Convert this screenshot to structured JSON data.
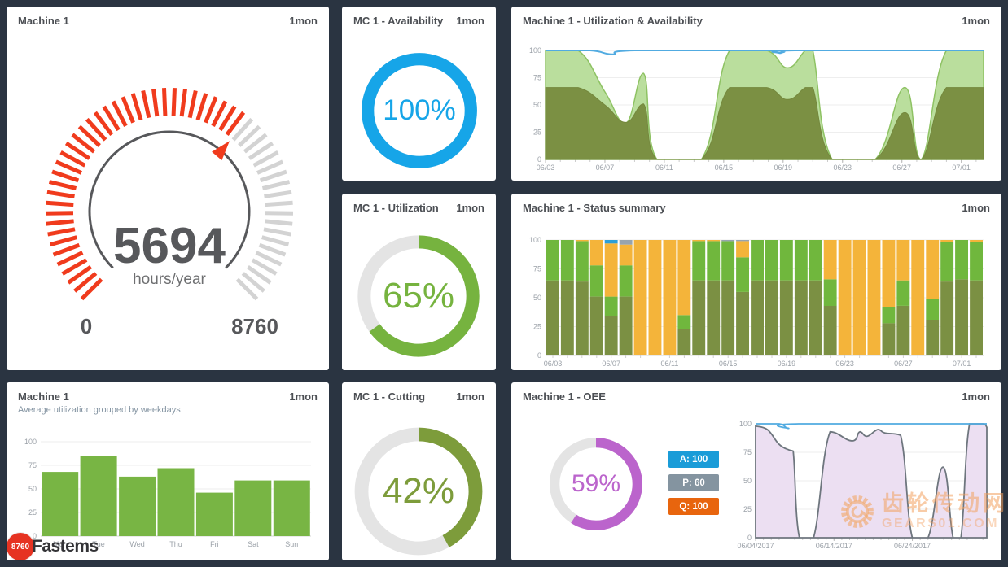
{
  "page": {
    "background": "#2a3441"
  },
  "logo": {
    "badge": "8760",
    "name": "Fastems",
    "badge_color": "#e63322"
  },
  "watermark": {
    "title": "齿轮传动网",
    "domain": "GEARS01.COM"
  },
  "panels": {
    "gauge": {
      "title": "Machine 1",
      "range_badge": "1mon",
      "chart_data": {
        "type": "gauge",
        "value": 5694,
        "min": 0,
        "max": 8760,
        "value_label": "5694",
        "unit": "hours/year",
        "min_label": "0",
        "max_label": "8760",
        "tick_count": 56,
        "active_color": "#f03b1d",
        "inactive_color": "#d3d3d3",
        "arc_color": "#57585b"
      }
    },
    "availability": {
      "title": "MC 1 - Availability",
      "range_badge": "1mon",
      "chart_data": {
        "type": "donut",
        "percent": 100,
        "label": "100%",
        "color": "#16a5e8",
        "track": "#e4e4e4"
      }
    },
    "util_avail": {
      "title": "Machine 1 - Utilization & Availability",
      "range_badge": "1mon",
      "chart_data": {
        "type": "area",
        "xmin": 0,
        "xmax": 29.5,
        "ymin": 0,
        "ymax": 100,
        "yticks": [
          0,
          25,
          50,
          75,
          100
        ],
        "xticks": [
          {
            "x": 0,
            "label": "06/03"
          },
          {
            "x": 4,
            "label": "06/07"
          },
          {
            "x": 8,
            "label": "06/11"
          },
          {
            "x": 12,
            "label": "06/15"
          },
          {
            "x": 16,
            "label": "06/19"
          },
          {
            "x": 20,
            "label": "06/23"
          },
          {
            "x": 24,
            "label": "06/27"
          },
          {
            "x": 28,
            "label": "07/01"
          }
        ],
        "series": [
          {
            "name": "availability-area",
            "fill": "#bade9d",
            "stroke": "#8ec263",
            "width": 1.5,
            "points": [
              [
                0,
                100
              ],
              [
                2.2,
                100
              ],
              [
                4,
                62
              ],
              [
                5.4,
                33
              ],
              [
                6.6,
                79
              ],
              [
                7.5,
                0
              ],
              [
                10.5,
                0
              ],
              [
                12.4,
                100
              ],
              [
                14.9,
                100
              ],
              [
                16.3,
                84
              ],
              [
                17.5,
                100
              ],
              [
                18,
                100
              ],
              [
                19.3,
                0
              ],
              [
                22.2,
                0
              ],
              [
                24.2,
                66
              ],
              [
                25.3,
                0
              ],
              [
                27,
                100
              ],
              [
                29.5,
                100
              ]
            ]
          },
          {
            "name": "utilization-area",
            "fill": "#7b9043",
            "stroke": "#74883d",
            "width": 1,
            "points": [
              [
                0,
                66
              ],
              [
                2.2,
                66
              ],
              [
                4,
                50
              ],
              [
                5.4,
                34
              ],
              [
                6.6,
                51
              ],
              [
                7.5,
                0
              ],
              [
                10.5,
                0
              ],
              [
                12.4,
                66
              ],
              [
                14.9,
                66
              ],
              [
                16.3,
                55
              ],
              [
                17.5,
                66
              ],
              [
                18,
                66
              ],
              [
                19.3,
                0
              ],
              [
                22.2,
                0
              ],
              [
                24.2,
                43
              ],
              [
                25.3,
                0
              ],
              [
                27,
                66
              ],
              [
                29.5,
                66
              ]
            ]
          },
          {
            "name": "availability-line",
            "stroke": "#51abe1",
            "width": 2,
            "points": [
              [
                0,
                100
              ],
              [
                3,
                100
              ],
              [
                4.5,
                96.5
              ],
              [
                6,
                100
              ],
              [
                15,
                100
              ],
              [
                15.8,
                97.5
              ],
              [
                16.8,
                100
              ],
              [
                29.5,
                100
              ]
            ]
          }
        ]
      }
    },
    "utilization": {
      "title": "MC 1 - Utilization",
      "range_badge": "1mon",
      "chart_data": {
        "type": "donut",
        "percent": 65,
        "label": "65%",
        "color": "#76b33f",
        "track": "#e4e4e4"
      }
    },
    "status": {
      "title": "Machine 1 - Status summary",
      "range_badge": "1mon",
      "chart_data": {
        "type": "stackedbar",
        "ymin": 0,
        "ymax": 100,
        "yticks": [
          0,
          25,
          50,
          75,
          100
        ],
        "colors": [
          "#7b9043",
          "#70b73d",
          "#f4b43a",
          "#2b9fd8",
          "#97a4ae"
        ],
        "xticks": [
          {
            "i": 0,
            "label": "06/03"
          },
          {
            "i": 4,
            "label": "06/07"
          },
          {
            "i": 8,
            "label": "06/11"
          },
          {
            "i": 12,
            "label": "06/15"
          },
          {
            "i": 16,
            "label": "06/19"
          },
          {
            "i": 20,
            "label": "06/23"
          },
          {
            "i": 24,
            "label": "06/27"
          },
          {
            "i": 28,
            "label": "07/01"
          }
        ],
        "bars": [
          [
            65,
            35,
            0,
            0,
            0
          ],
          [
            65,
            35,
            0,
            0,
            0
          ],
          [
            64,
            35,
            1,
            0,
            0
          ],
          [
            51,
            27,
            22,
            0,
            0
          ],
          [
            34,
            17,
            46,
            3,
            0
          ],
          [
            51,
            27,
            18,
            0,
            4
          ],
          [
            0,
            0,
            100,
            0,
            0
          ],
          [
            0,
            0,
            100,
            0,
            0
          ],
          [
            0,
            0,
            100,
            0,
            0
          ],
          [
            23,
            12,
            65,
            0,
            0
          ],
          [
            65,
            34,
            1,
            0,
            0
          ],
          [
            65,
            34,
            1,
            0,
            0
          ],
          [
            65,
            34,
            0,
            0,
            1
          ],
          [
            55,
            30,
            14,
            0,
            1
          ],
          [
            65,
            35,
            0,
            0,
            0
          ],
          [
            65,
            35,
            0,
            0,
            0
          ],
          [
            65,
            35,
            0,
            0,
            0
          ],
          [
            65,
            35,
            0,
            0,
            0
          ],
          [
            65,
            35,
            0,
            0,
            0
          ],
          [
            43,
            23,
            34,
            0,
            0
          ],
          [
            0,
            0,
            100,
            0,
            0
          ],
          [
            0,
            0,
            100,
            0,
            0
          ],
          [
            0,
            0,
            100,
            0,
            0
          ],
          [
            28,
            14,
            58,
            0,
            0
          ],
          [
            43,
            22,
            35,
            0,
            0
          ],
          [
            0,
            0,
            100,
            0,
            0
          ],
          [
            31,
            18,
            51,
            0,
            0
          ],
          [
            64,
            34,
            2,
            0,
            0
          ],
          [
            66,
            34,
            0,
            0,
            0
          ],
          [
            65,
            33,
            2,
            0,
            0
          ]
        ]
      }
    },
    "weekday": {
      "title": "Machine 1",
      "subtitle": "Average utilization grouped by weekdays",
      "range_badge": "1mon",
      "chart_data": {
        "type": "bar",
        "categories": [
          "Mon",
          "Tue",
          "Wed",
          "Thu",
          "Fri",
          "Sat",
          "Sun"
        ],
        "values": [
          68,
          85,
          63,
          72,
          46,
          59,
          59
        ],
        "color": "#78b544",
        "ymin": 0,
        "ymax": 100,
        "yticks": [
          0,
          25,
          50,
          75,
          100
        ]
      }
    },
    "cutting": {
      "title": "MC 1 - Cutting",
      "range_badge": "1mon",
      "chart_data": {
        "type": "donut",
        "percent": 42,
        "label": "42%",
        "color": "#7d9c3b",
        "track": "#e4e4e4"
      }
    },
    "oee": {
      "title": "Machine 1 - OEE",
      "range_badge": "1mon",
      "chart_data": {
        "type": "donut",
        "percent": 59,
        "label": "59%",
        "color": "#bb64cc",
        "track": "#e4e4e4"
      },
      "legend": [
        {
          "label": "A: 100",
          "color": "#1a9cd8"
        },
        {
          "label": "P: 60",
          "color": "#8494a0"
        },
        {
          "label": "Q: 100",
          "color": "#e8650e"
        }
      ],
      "trend": {
        "type": "area",
        "xmin": 0,
        "xmax": 29.5,
        "ymin": 0,
        "ymax": 100,
        "yticks": [
          0,
          25,
          50,
          75,
          100
        ],
        "xticks": [
          {
            "x": 0,
            "label": "06/04/2017"
          },
          {
            "x": 10,
            "label": "06/14/2017"
          },
          {
            "x": 20,
            "label": "06/24/2017"
          }
        ],
        "series": [
          {
            "name": "oee-area",
            "fill": "#ecdff2",
            "stroke": "#6e767e",
            "width": 1.8,
            "points": [
              [
                0,
                98
              ],
              [
                1.5,
                95
              ],
              [
                3,
                82
              ],
              [
                4.3,
                77
              ],
              [
                4.8,
                76
              ],
              [
                5.6,
                0
              ],
              [
                7.4,
                0
              ],
              [
                9.5,
                93
              ],
              [
                12.3,
                85
              ],
              [
                13.3,
                93
              ],
              [
                14.2,
                89
              ],
              [
                15.6,
                95
              ],
              [
                16.5,
                92
              ],
              [
                18.5,
                90
              ],
              [
                20,
                0
              ],
              [
                22,
                0
              ],
              [
                23.9,
                62
              ],
              [
                25.2,
                0
              ],
              [
                26.2,
                0
              ],
              [
                27.3,
                100
              ],
              [
                29,
                100
              ],
              [
                29.5,
                97
              ]
            ]
          },
          {
            "name": "availability-line",
            "stroke": "#51abe1",
            "width": 1.8,
            "points": [
              [
                0,
                100
              ],
              [
                3,
                100
              ],
              [
                4.2,
                96
              ],
              [
                5.5,
                100
              ],
              [
                29.5,
                100
              ]
            ]
          }
        ]
      }
    }
  }
}
